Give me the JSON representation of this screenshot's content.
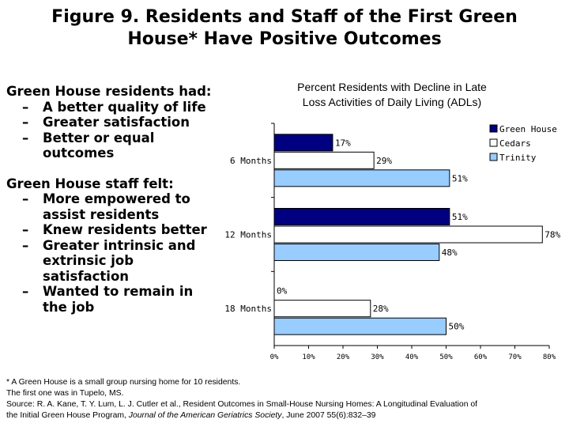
{
  "title": {
    "line1": "Figure 9. Residents and Staff of the First Green",
    "line2": "House* Have Positive Outcomes"
  },
  "residents": {
    "heading": "Green House residents had:",
    "items": [
      "A better quality of life",
      "Greater satisfaction",
      "Better or equal outcomes"
    ]
  },
  "staff": {
    "heading": "Green House staff felt:",
    "items": [
      "More empowered to assist residents",
      "Knew residents better",
      "Greater intrinsic and extrinsic job satisfaction",
      "Wanted to remain in the job"
    ]
  },
  "chart_data": {
    "type": "bar",
    "orientation": "horizontal",
    "title": "Percent Residents with Decline in Late Loss Activities of Daily Living (ADLs)",
    "categories": [
      "6 Months",
      "12 Months",
      "18 Months"
    ],
    "series": [
      {
        "name": "Green House",
        "values": [
          17,
          51,
          0
        ],
        "color": "#000080"
      },
      {
        "name": "Cedars",
        "values": [
          29,
          78,
          28
        ],
        "color": "#ffffff"
      },
      {
        "name": "Trinity",
        "values": [
          51,
          48,
          50
        ],
        "color": "#99ccff"
      }
    ],
    "value_labels": [
      [
        "17%",
        "51%",
        "0%"
      ],
      [
        "29%",
        "78%",
        "28%"
      ],
      [
        "51%",
        "48%",
        "50%"
      ]
    ],
    "xlim": [
      0,
      80
    ],
    "xticks": [
      "0%",
      "10%",
      "20%",
      "30%",
      "40%",
      "50%",
      "60%",
      "70%",
      "80%"
    ],
    "grid": false,
    "legend_position": "top-right"
  },
  "footnote": {
    "line1": "* A Green House is a small group nursing home for 10 residents.",
    "line2": "The first one was in Tupelo, MS.",
    "line3_prefix": "Source: R. A. Kane, T. Y. Lum, L. J. Cutler et al., Resident Outcomes in Small-House Nursing Homes: A Longitudinal Evaluation of",
    "line4_prefix": "the Initial Green House Program, ",
    "line4_journal": "Journal of the American Geriatrics Society",
    "line4_suffix": ", June 2007 55(6):832–39"
  }
}
